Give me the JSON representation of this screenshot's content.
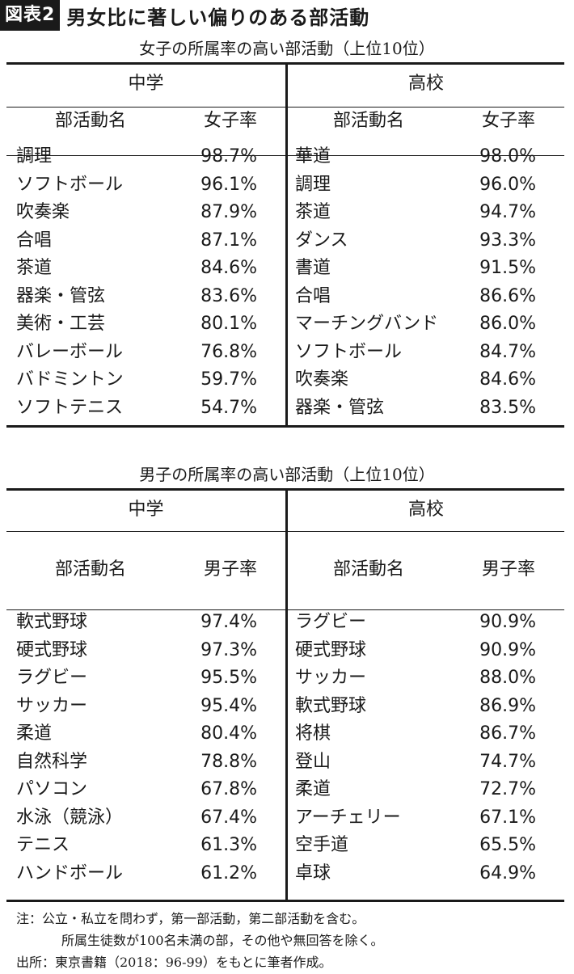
{
  "figure": {
    "badge": "図表2",
    "title": "男女比に著しい偏りのある部活動"
  },
  "tables": [
    {
      "title": "女子の所属率の高い部活動（上位10位）",
      "groups": [
        "中学",
        "高校"
      ],
      "col_name": "部活動名",
      "col_rate": "女子率",
      "middle": [
        {
          "name": "調理",
          "rate": "98.7%"
        },
        {
          "name": "ソフトボール",
          "rate": "96.1%"
        },
        {
          "name": "吹奏楽",
          "rate": "87.9%"
        },
        {
          "name": "合唱",
          "rate": "87.1%"
        },
        {
          "name": "茶道",
          "rate": "84.6%"
        },
        {
          "name": "器楽・管弦",
          "rate": "83.6%"
        },
        {
          "name": "美術・工芸",
          "rate": "80.1%"
        },
        {
          "name": "バレーボール",
          "rate": "76.8%"
        },
        {
          "name": "バドミントン",
          "rate": "59.7%"
        },
        {
          "name": "ソフトテニス",
          "rate": "54.7%"
        }
      ],
      "high": [
        {
          "name": "華道",
          "rate": "98.0%"
        },
        {
          "name": "調理",
          "rate": "96.0%"
        },
        {
          "name": "茶道",
          "rate": "94.7%"
        },
        {
          "name": "ダンス",
          "rate": "93.3%"
        },
        {
          "name": "書道",
          "rate": "91.5%"
        },
        {
          "name": "合唱",
          "rate": "86.6%"
        },
        {
          "name": "マーチングバンド",
          "rate": "86.0%"
        },
        {
          "name": "ソフトボール",
          "rate": "84.7%"
        },
        {
          "name": "吹奏楽",
          "rate": "84.6%"
        },
        {
          "name": "器楽・管弦",
          "rate": "83.5%"
        }
      ]
    },
    {
      "title": "男子の所属率の高い部活動（上位10位）",
      "groups": [
        "中学",
        "高校"
      ],
      "col_name": "部活動名",
      "col_rate": "男子率",
      "middle": [
        {
          "name": "軟式野球",
          "rate": "97.4%"
        },
        {
          "name": "硬式野球",
          "rate": "97.3%"
        },
        {
          "name": "ラグビー",
          "rate": "95.5%"
        },
        {
          "name": "サッカー",
          "rate": "95.4%"
        },
        {
          "name": "柔道",
          "rate": "80.4%"
        },
        {
          "name": "自然科学",
          "rate": "78.8%"
        },
        {
          "name": "パソコン",
          "rate": "67.8%"
        },
        {
          "name": "水泳（競泳）",
          "rate": "67.4%"
        },
        {
          "name": "テニス",
          "rate": "61.3%"
        },
        {
          "name": "ハンドボール",
          "rate": "61.2%"
        }
      ],
      "high": [
        {
          "name": "ラグビー",
          "rate": "90.9%"
        },
        {
          "name": "硬式野球",
          "rate": "90.9%"
        },
        {
          "name": "サッカー",
          "rate": "88.0%"
        },
        {
          "name": "軟式野球",
          "rate": "86.9%"
        },
        {
          "name": "将棋",
          "rate": "86.7%"
        },
        {
          "name": "登山",
          "rate": "74.7%"
        },
        {
          "name": "柔道",
          "rate": "72.7%"
        },
        {
          "name": "アーチェリー",
          "rate": "67.1%"
        },
        {
          "name": "空手道",
          "rate": "65.5%"
        },
        {
          "name": "卓球",
          "rate": "64.9%"
        }
      ]
    }
  ],
  "notes": {
    "line1": "注：公立・私立を問わず，第一部活動，第二部活動を含む。",
    "line2": "所属生徒数が100名未満の部，その他や無回答を除く。",
    "line3": "出所：東京書籍（2018：96-99）をもとに筆者作成。"
  }
}
